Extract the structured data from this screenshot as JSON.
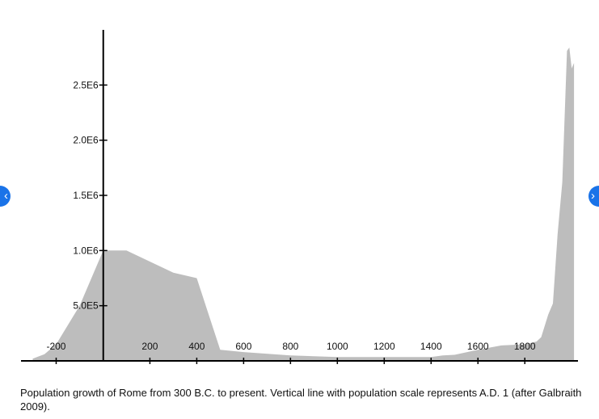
{
  "chart_data": {
    "type": "area",
    "x": [
      -300,
      -250,
      -200,
      -100,
      1,
      100,
      200,
      300,
      400,
      500,
      600,
      800,
      1000,
      1200,
      1400,
      1450,
      1500,
      1600,
      1700,
      1800,
      1850,
      1870,
      1900,
      1920,
      1940,
      1960,
      1980,
      1990,
      2000,
      2010
    ],
    "values": [
      20000,
      60000,
      150000,
      500000,
      1000000,
      1000000,
      900000,
      800000,
      750000,
      100000,
      80000,
      50000,
      35000,
      35000,
      35000,
      50000,
      55000,
      100000,
      140000,
      150000,
      175000,
      215000,
      420000,
      520000,
      1150000,
      1620000,
      2810000,
      2840000,
      2650000,
      2700000
    ],
    "xticks": [
      -200,
      200,
      400,
      600,
      800,
      1000,
      1200,
      1400,
      1600,
      1800
    ],
    "yticks": [
      500000,
      1000000,
      1500000,
      2000000,
      2500000
    ],
    "xtick_labels": [
      "-200",
      "200",
      "400",
      "600",
      "800",
      "1000",
      "1200",
      "1400",
      "1600",
      "1800"
    ],
    "ytick_labels": [
      "5.0E5",
      "1.0E6",
      "1.5E6",
      "2.0E6",
      "2.5E6"
    ],
    "xlim": [
      -350,
      2020
    ],
    "ylim": [
      0,
      3000000
    ],
    "fill_color": "#bdbdbd",
    "axis_color": "#000000",
    "grid": false,
    "title": "",
    "xlabel": "",
    "ylabel": ""
  },
  "caption": "Population growth of Rome from 300 B.C. to present. Vertical line with population scale represents A.D. 1 (after Galbraith 2009).",
  "nav": {
    "prev_icon": "‹",
    "next_icon": "›"
  },
  "colors": {
    "nav_button": "#1a73e8"
  }
}
